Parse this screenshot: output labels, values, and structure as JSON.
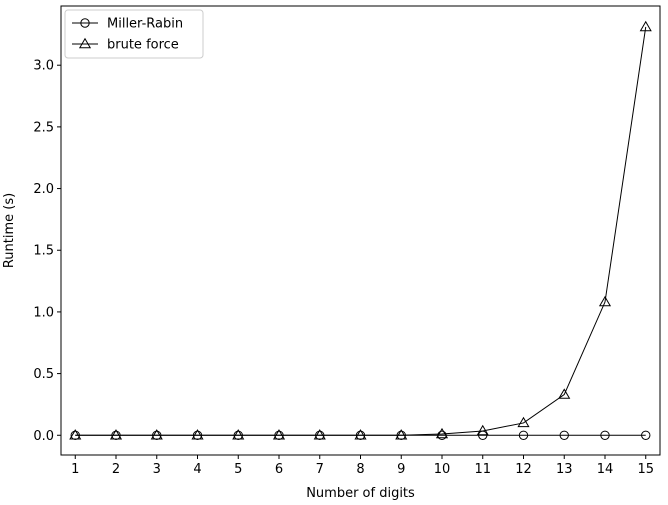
{
  "chart_data": {
    "type": "line",
    "title": "",
    "xlabel": "Number of digits",
    "ylabel": "Runtime (s)",
    "xlim": [
      0.65,
      15.35
    ],
    "ylim": [
      -0.16,
      3.48
    ],
    "x": [
      1,
      2,
      3,
      4,
      5,
      6,
      7,
      8,
      9,
      10,
      11,
      12,
      13,
      14,
      15
    ],
    "xticks": [
      "1",
      "2",
      "3",
      "4",
      "5",
      "6",
      "7",
      "8",
      "9",
      "10",
      "11",
      "12",
      "13",
      "14",
      "15"
    ],
    "yticks": [
      0.0,
      0.5,
      1.0,
      1.5,
      2.0,
      2.5,
      3.0
    ],
    "ytick_labels": [
      "0.0",
      "0.5",
      "1.0",
      "1.5",
      "2.0",
      "2.5",
      "3.0"
    ],
    "grid": false,
    "legend_position": "top-left",
    "series": [
      {
        "name": "Miller-Rabin",
        "marker": "circle",
        "color": "#000000",
        "values": [
          0.0,
          0.0,
          0.0,
          0.0,
          0.0,
          0.0,
          0.0,
          0.0,
          0.0,
          0.0,
          0.0,
          0.0,
          0.0,
          0.0,
          0.0
        ]
      },
      {
        "name": "brute force",
        "marker": "triangle",
        "color": "#000000",
        "values": [
          0.0,
          0.0,
          0.0,
          0.0,
          0.0,
          0.0,
          0.0,
          0.0,
          0.0,
          0.01,
          0.035,
          0.1,
          0.33,
          1.08,
          3.31
        ]
      }
    ]
  }
}
